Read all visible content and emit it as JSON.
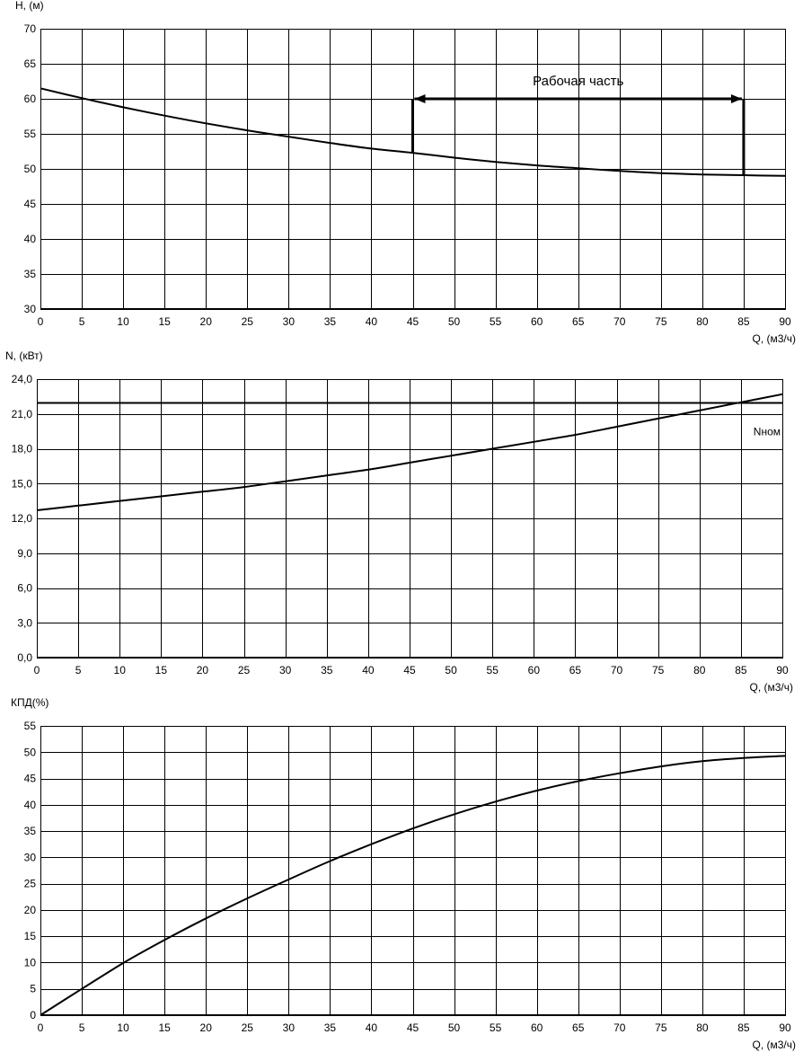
{
  "chart_data": [
    {
      "type": "line",
      "title": "",
      "ylabel": "H, (м)",
      "xlabel": "Q, (м3/ч)",
      "xlim": [
        0,
        90
      ],
      "ylim": [
        30,
        70
      ],
      "x_ticks": [
        "0",
        "5",
        "10",
        "15",
        "20",
        "25",
        "30",
        "35",
        "40",
        "45",
        "50",
        "55",
        "60",
        "65",
        "70",
        "75",
        "80",
        "85",
        "90"
      ],
      "y_ticks": [
        "30",
        "35",
        "40",
        "45",
        "50",
        "55",
        "60",
        "65",
        "70"
      ],
      "grid": true,
      "series": [
        {
          "x": [
            0,
            5,
            10,
            15,
            20,
            25,
            30,
            35,
            40,
            45,
            50,
            55,
            60,
            65,
            70,
            75,
            80,
            85,
            90
          ],
          "y": [
            61.5,
            60.1,
            58.8,
            57.6,
            56.5,
            55.5,
            54.6,
            53.7,
            52.9,
            52.3,
            51.6,
            51.0,
            50.5,
            50.1,
            49.7,
            49.4,
            49.2,
            49.1,
            49.0
          ]
        }
      ],
      "annotation": {
        "text": "Рабочая часть",
        "x_start": 45,
        "x_end": 85,
        "y_level": 60
      }
    },
    {
      "type": "line",
      "title": "",
      "ylabel": "N, (кВт)",
      "xlabel": "Q, (м3/ч)",
      "xlim": [
        0,
        90
      ],
      "ylim": [
        0,
        24
      ],
      "x_ticks": [
        "0",
        "5",
        "10",
        "15",
        "20",
        "25",
        "30",
        "35",
        "40",
        "45",
        "50",
        "55",
        "60",
        "65",
        "70",
        "75",
        "80",
        "85",
        "90"
      ],
      "y_ticks": [
        "0,0",
        "3,0",
        "6,0",
        "9,0",
        "12,0",
        "15,0",
        "18,0",
        "21,0",
        "24,0"
      ],
      "grid": true,
      "series": [
        {
          "x": [
            0,
            5,
            10,
            15,
            20,
            25,
            30,
            35,
            40,
            45,
            50,
            55,
            60,
            65,
            70,
            75,
            80,
            85,
            90
          ],
          "y": [
            12.7,
            13.1,
            13.5,
            13.9,
            14.3,
            14.7,
            15.2,
            15.7,
            16.2,
            16.8,
            17.4,
            18.0,
            18.6,
            19.2,
            19.9,
            20.6,
            21.3,
            22.0,
            22.7
          ]
        }
      ],
      "nominal": {
        "label": "Nном",
        "value": 22.0
      }
    },
    {
      "type": "line",
      "title": "",
      "ylabel": "КПД(%)",
      "xlabel": "Q, (м3/ч)",
      "xlim": [
        0,
        90
      ],
      "ylim": [
        0,
        55
      ],
      "x_ticks": [
        "0",
        "5",
        "10",
        "15",
        "20",
        "25",
        "30",
        "35",
        "40",
        "45",
        "50",
        "55",
        "60",
        "65",
        "70",
        "75",
        "80",
        "85",
        "90"
      ],
      "y_ticks": [
        "0",
        "5",
        "10",
        "15",
        "20",
        "25",
        "30",
        "35",
        "40",
        "45",
        "50",
        "55"
      ],
      "grid": true,
      "series": [
        {
          "x": [
            0,
            5,
            10,
            15,
            20,
            25,
            30,
            35,
            40,
            45,
            50,
            55,
            60,
            65,
            70,
            75,
            80,
            85,
            90
          ],
          "y": [
            0,
            5.0,
            9.9,
            14.3,
            18.4,
            22.2,
            25.8,
            29.3,
            32.5,
            35.5,
            38.2,
            40.6,
            42.7,
            44.5,
            46.0,
            47.3,
            48.3,
            48.9,
            49.3
          ]
        }
      ]
    }
  ]
}
